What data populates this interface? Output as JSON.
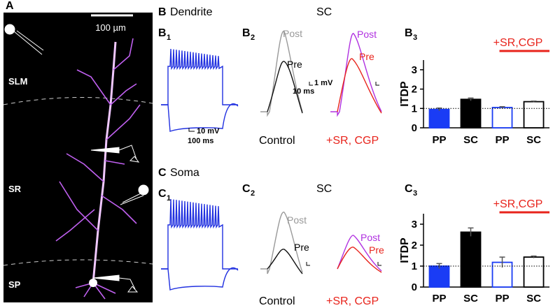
{
  "panels": {
    "A": {
      "label": "A",
      "scale_bar": "100 µm",
      "regions": [
        "SLM",
        "SR",
        "SP"
      ]
    },
    "B": {
      "label": "B",
      "title": "Dendrite",
      "B1": {
        "letter": "B",
        "sub": "1",
        "scale_v": "10 mV",
        "scale_t": "100 ms"
      },
      "B2": {
        "letter": "B",
        "sub": "2",
        "pathway": "SC",
        "post": "Post",
        "pre": "Pre",
        "scale_v": "1 mV",
        "scale_t": "10 ms",
        "control": "Control",
        "drug": "+SR, CGP",
        "post2": "Post",
        "pre2": "Pre"
      },
      "B3": {
        "letter": "B",
        "sub": "3"
      }
    },
    "C": {
      "label": "C",
      "title": "Soma",
      "C1": {
        "letter": "C",
        "sub": "1"
      },
      "C2": {
        "letter": "C",
        "sub": "2",
        "pathway": "SC",
        "post": "Post",
        "pre": "Pre",
        "control": "Control",
        "drug": "+SR, CGP",
        "post2": "Post",
        "pre2": "Pre"
      },
      "C3": {
        "letter": "C",
        "sub": "3"
      }
    }
  },
  "chart_data": [
    {
      "type": "bar",
      "y_label": "ITDP",
      "annotation": "+SR,CGP",
      "annotation_color": "#e8231b",
      "categories": [
        "PP",
        "SC",
        "PP",
        "SC"
      ],
      "values": [
        0.95,
        1.47,
        1.05,
        1.35
      ],
      "errors": [
        0.07,
        0.07,
        0.04,
        0.03
      ],
      "bar_fill": [
        "#1a3cf5",
        "#000000",
        "#ffffff",
        "#ffffff"
      ],
      "bar_edge": [
        "#1a3cf5",
        "#000000",
        "#1a3cf5",
        "#000000"
      ],
      "ylim": [
        0,
        3.5
      ],
      "yticks": [
        0,
        1,
        2,
        3
      ],
      "reference_line": 1
    },
    {
      "type": "bar",
      "y_label": "ITDP",
      "annotation": "+SR,CGP",
      "annotation_color": "#e8231b",
      "categories": [
        "PP",
        "SC",
        "PP",
        "SC"
      ],
      "values": [
        1.0,
        2.62,
        1.18,
        1.43
      ],
      "errors": [
        0.12,
        0.2,
        0.25,
        0.05
      ],
      "bar_fill": [
        "#1a3cf5",
        "#000000",
        "#ffffff",
        "#ffffff"
      ],
      "bar_edge": [
        "#1a3cf5",
        "#000000",
        "#1a3cf5",
        "#000000"
      ],
      "ylim": [
        0,
        3.5
      ],
      "yticks": [
        0,
        1,
        2,
        3
      ],
      "reference_line": 1
    }
  ]
}
